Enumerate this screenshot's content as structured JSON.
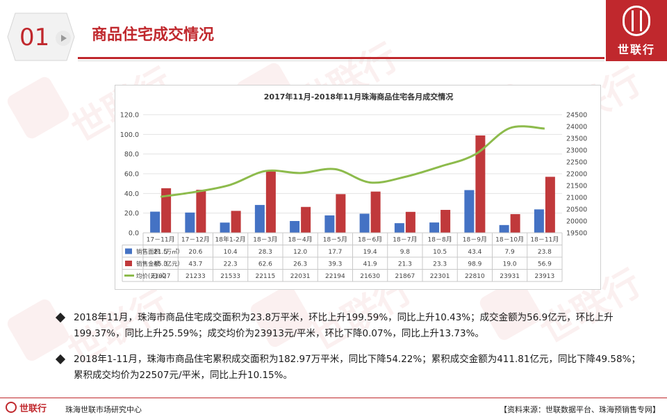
{
  "header": {
    "section_number": "01",
    "title": "商品住宅成交情况",
    "brand": "世联行"
  },
  "watermark": {
    "text": "世联行"
  },
  "chart_data": {
    "type": "bar+line",
    "title": "2017年11月-2018年11月珠海商品住宅各月成交情况",
    "categories": [
      "17－11月",
      "17－12月",
      "18年1-2月",
      "18－3月",
      "18－4月",
      "18－5月",
      "18－6月",
      "18－7月",
      "18－8月",
      "18－9月",
      "18－10月",
      "18－11月"
    ],
    "series": [
      {
        "name": "销售面积（万㎡）",
        "kind": "bar",
        "axis": "left",
        "color": "#4472c4",
        "values": [
          "21.5",
          "20.6",
          "10.4",
          "28.3",
          "12.0",
          "17.7",
          "19.4",
          "9.8",
          "10.5",
          "43.4",
          "7.9",
          "23.8"
        ]
      },
      {
        "name": "销售金额（亿元）",
        "kind": "bar",
        "axis": "left",
        "color": "#c0393b",
        "values": [
          "45.3",
          "43.7",
          "22.3",
          "62.6",
          "26.3",
          "39.3",
          "41.9",
          "21.3",
          "23.3",
          "98.9",
          "19.0",
          "56.9"
        ]
      },
      {
        "name": "均价(元/㎡)",
        "kind": "line",
        "axis": "right",
        "color": "#8dbb4c",
        "values": [
          "21027",
          "21233",
          "21533",
          "22115",
          "22031",
          "22194",
          "21630",
          "21867",
          "22301",
          "22810",
          "23931",
          "23913"
        ]
      }
    ],
    "y_left": {
      "min": 0,
      "max": 120,
      "step": 20,
      "ticks": [
        "0.0",
        "20.0",
        "40.0",
        "60.0",
        "80.0",
        "100.0",
        "120.0"
      ]
    },
    "y_right": {
      "min": 19500,
      "max": 24500,
      "step": 500,
      "ticks": [
        "19500",
        "20000",
        "20500",
        "21000",
        "21500",
        "22000",
        "22500",
        "23000",
        "23500",
        "24000",
        "24500"
      ]
    },
    "grid": true,
    "legend": "data-table"
  },
  "bullets": [
    "2018年11月，珠海市商品住宅成交面积为23.8万平米，环比上升199.59%，同比上升10.43%；成交金额为56.9亿元，环比上升199.37%，同比上升25.59%；成交均价为23913元/平米，环比下降0.07%，同比上升13.73%。",
    "2018年1-11月，珠海市商品住宅累积成交面积为182.97万平米，同比下降54.22%；累积成交金额为411.81亿元，同比下降49.58%；累积成交均价为22507元/平米，同比上升10.15%。"
  ],
  "footer": {
    "brand": "世联行",
    "center": "珠海世联市场研究中心",
    "source": "【资料来源：世联数据平台、珠海预销售专网】"
  }
}
